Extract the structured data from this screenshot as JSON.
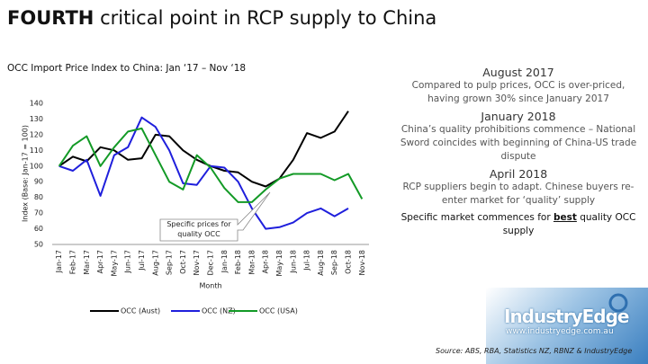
{
  "title_parts": [
    "FOURTH",
    " critical point in RCP supply to China"
  ],
  "chart_data": {
    "type": "line",
    "title": "OCC Import Price Index to China: Jan ‘17 – Nov ‘18",
    "y_label": "Index (Base: Jan-17 = 100)",
    "x_label": "Month",
    "annotation": "Specific prices for quality OCC",
    "categories": [
      "Jan-17",
      "Feb-17",
      "Mar-17",
      "Apr-17",
      "May-17",
      "Jun-17",
      "Jul-17",
      "Aug-17",
      "Sep-17",
      "Oct-17",
      "Nov-17",
      "Dec-17",
      "Jan-18",
      "Feb-18",
      "Mar-18",
      "Apr-18",
      "May-18",
      "Jun-18",
      "Jul-18",
      "Aug-18",
      "Sep-18",
      "Oct-18",
      "Nov-18"
    ],
    "series": [
      {
        "name": "OCC (Aust)",
        "color": "#000000",
        "values": [
          100,
          106,
          103,
          112,
          110,
          104,
          105,
          120,
          119,
          110,
          104,
          100,
          97,
          96,
          90,
          87,
          92,
          104,
          121,
          118,
          122,
          135,
          null
        ]
      },
      {
        "name": "OCC (NZ)",
        "color": "#1f1fdc",
        "values": [
          100,
          97,
          104,
          81,
          107,
          112,
          131,
          125,
          110,
          89,
          88,
          100,
          99,
          90,
          73,
          60,
          61,
          64,
          70,
          73,
          68,
          73,
          null
        ]
      },
      {
        "name": "OCC (USA)",
        "color": "#139a26",
        "values": [
          100,
          113,
          119,
          100,
          112,
          122,
          124,
          107,
          90,
          85,
          107,
          99,
          86,
          77,
          77,
          85,
          92,
          95,
          95,
          95,
          91,
          95,
          79
        ]
      }
    ],
    "ylim": [
      50,
      140
    ],
    "yticks": [
      50,
      60,
      70,
      80,
      90,
      100,
      110,
      120,
      130,
      140
    ],
    "grid": false,
    "legend": "bottom"
  },
  "notes": [
    {
      "heading": "August 2017",
      "text": "Compared to pulp prices, OCC is over-priced, having grown 30% since January 2017"
    },
    {
      "heading": "January 2018",
      "text": "China’s quality prohibitions commence – National Sword coincides with beginning of China-US trade dispute"
    },
    {
      "heading": "April 2018",
      "text": "RCP suppliers begin to adapt. Chinese buyers re-enter market for ‘quality’ supply"
    }
  ],
  "final_note": [
    "Specific market commences for ",
    "best",
    " quality OCC supply"
  ],
  "logo": "IndustryEdge",
  "url": "www.industryedge.com.au",
  "source": "Source: ABS, RBA, Statistics NZ, RBNZ & IndustryEdge"
}
